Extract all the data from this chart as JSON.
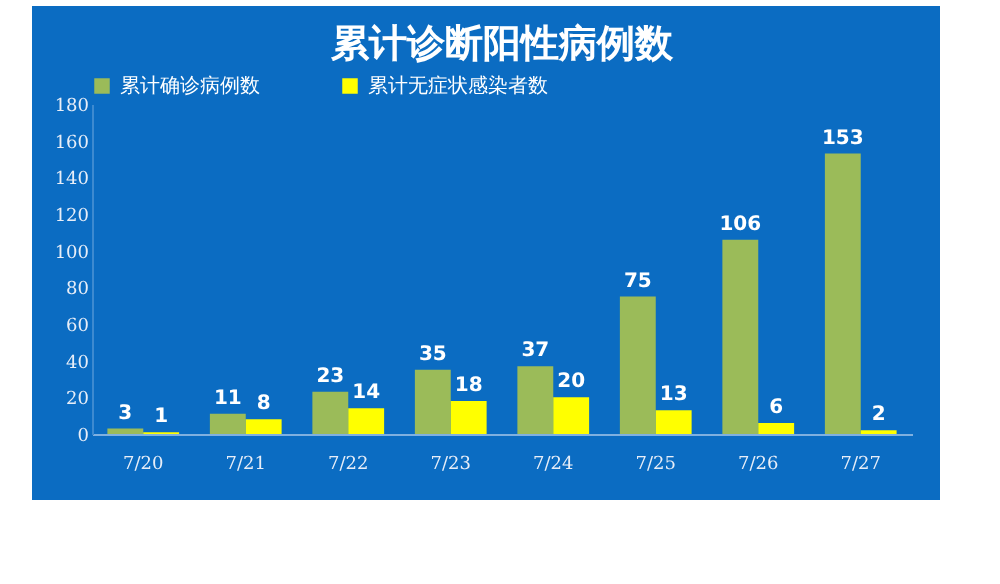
{
  "chart_data": {
    "type": "bar",
    "title": "累计诊断阳性病例数",
    "categories": [
      "7/20",
      "7/21",
      "7/22",
      "7/23",
      "7/24",
      "7/25",
      "7/26",
      "7/27"
    ],
    "series": [
      {
        "name": "累计确诊病例数",
        "color": "#9bbb59",
        "values": [
          3,
          11,
          23,
          35,
          37,
          75,
          106,
          153
        ]
      },
      {
        "name": "累计无症状感染者数",
        "color": "#ffff00",
        "values": [
          1,
          8,
          14,
          18,
          20,
          13,
          6,
          2
        ]
      }
    ],
    "ylim": [
      0,
      180
    ],
    "yticks": [
      0,
      20,
      40,
      60,
      80,
      100,
      120,
      140,
      160,
      180
    ],
    "grid": false,
    "legend": "top",
    "data_labels": true
  }
}
